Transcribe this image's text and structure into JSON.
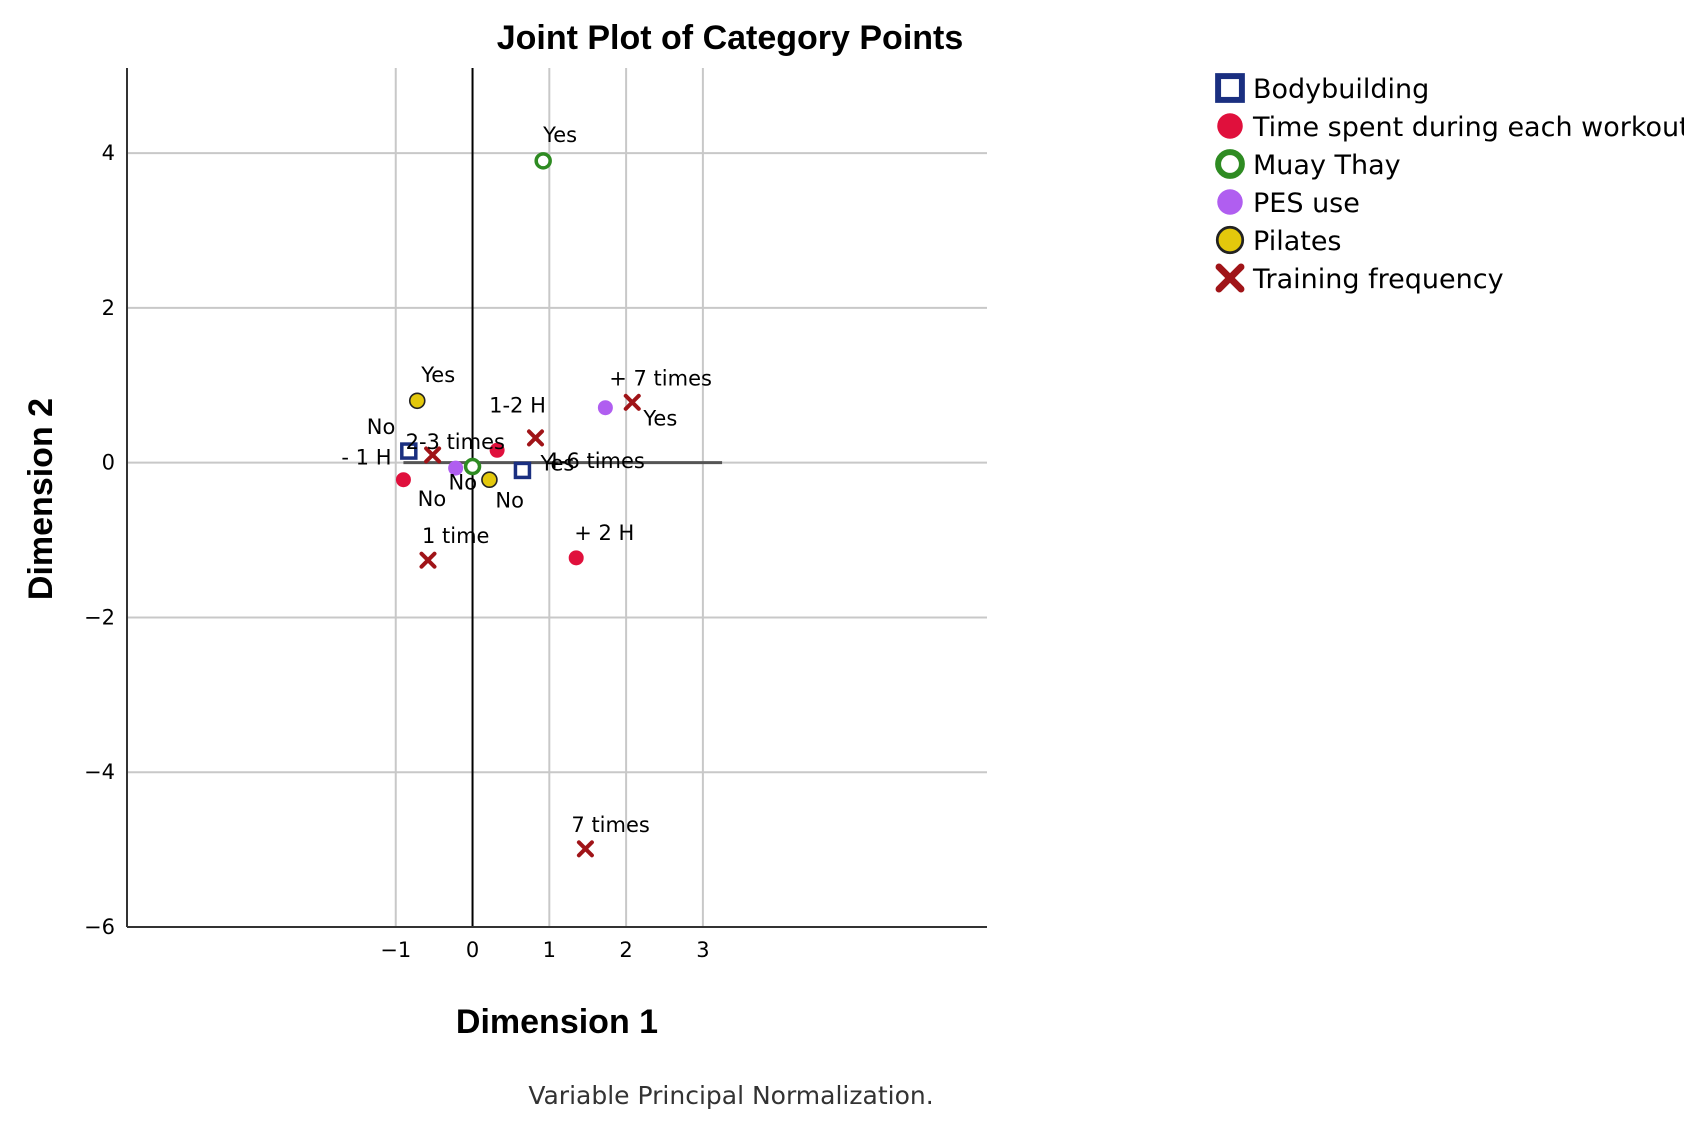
{
  "chart_data": {
    "type": "scatter",
    "title": "Joint Plot of Category Points",
    "xlabel": "Dimension 1",
    "ylabel": "Dimension 2",
    "xlim": [
      -4.5,
      6.7
    ],
    "ylim": [
      -6,
      5.1
    ],
    "x_ticks": [
      -1,
      0,
      1,
      2,
      3
    ],
    "y_ticks": [
      4,
      2,
      0,
      -2,
      -4,
      -6
    ],
    "x_tick_labels": [
      "−1",
      "0",
      "1",
      "2",
      "3"
    ],
    "y_tick_labels": [
      "4",
      "2",
      "0",
      "−2",
      "−4",
      "−6"
    ],
    "grid": true,
    "legend_position": "right",
    "footnote": "Variable Principal Normalization.",
    "series": [
      {
        "name": "Bodybuilding",
        "marker": "square-open",
        "color": "#1a2f80",
        "points": [
          {
            "label": "No",
            "x": -0.83,
            "y": 0.15
          },
          {
            "label": "Yes",
            "x": 0.65,
            "y": -0.1
          }
        ]
      },
      {
        "name": "Time spent during each workout",
        "marker": "circle",
        "color": "#e0103c",
        "points": [
          {
            "label": "- 1 H",
            "x": -0.9,
            "y": -0.22
          },
          {
            "label": "1-2 H",
            "x": 0.32,
            "y": 0.16
          },
          {
            "label": "+ 2 H",
            "x": 1.35,
            "y": -1.23
          }
        ]
      },
      {
        "name": "Muay Thay",
        "marker": "circle-open",
        "color": "#2e8b22",
        "points": [
          {
            "label": "Yes",
            "x": 0.92,
            "y": 3.9
          },
          {
            "label": "No",
            "x": 0.0,
            "y": -0.05
          }
        ]
      },
      {
        "name": "PES use",
        "marker": "circle",
        "color": "#b05ef0",
        "points": [
          {
            "label": "No",
            "x": -0.22,
            "y": -0.07
          },
          {
            "label": "Yes",
            "x": 1.73,
            "y": 0.71
          }
        ]
      },
      {
        "name": "Pilates",
        "marker": "circle-filled-outline",
        "color": "#e3c80c",
        "points": [
          {
            "label": "Yes",
            "x": -0.72,
            "y": 0.8
          },
          {
            "label": "No",
            "x": 0.22,
            "y": -0.22
          }
        ]
      },
      {
        "name": "Training frequency",
        "marker": "x",
        "color": "#a01418",
        "points": [
          {
            "label": "2-3 times",
            "x": -0.52,
            "y": 0.1
          },
          {
            "label": "1 time",
            "x": -0.58,
            "y": -1.26
          },
          {
            "label": "4-6 times",
            "x": 0.82,
            "y": 0.32
          },
          {
            "label": "+ 7 times",
            "x": 2.08,
            "y": 0.78
          },
          {
            "label": "7 times",
            "x": 1.47,
            "y": -4.99
          }
        ]
      }
    ]
  }
}
